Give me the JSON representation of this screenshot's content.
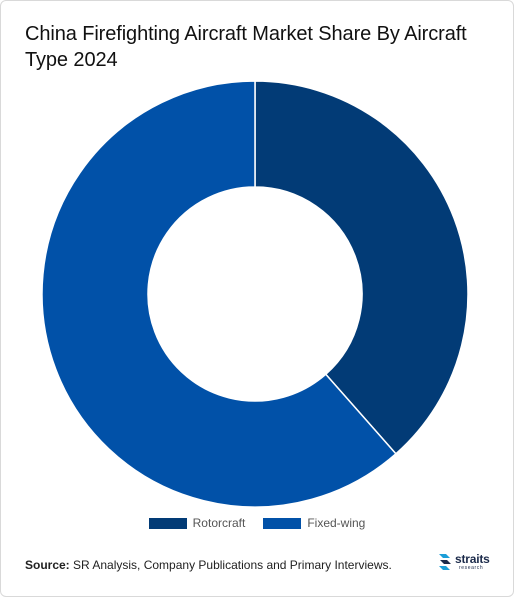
{
  "title": "China Firefighting Aircraft Market Share By Aircraft Type 2024",
  "source": {
    "label": "Source:",
    "text": " SR Analysis, Company Publications and Primary Interviews."
  },
  "logo": {
    "name": "straits",
    "sub": "research"
  },
  "chart_data": {
    "type": "pie",
    "variant": "donut",
    "categories": [
      "Rotorcraft",
      "Fixed-wing"
    ],
    "values": [
      38.5,
      61.5
    ],
    "colors": [
      "#023b76",
      "#0151a8"
    ],
    "legend": "bottom"
  }
}
